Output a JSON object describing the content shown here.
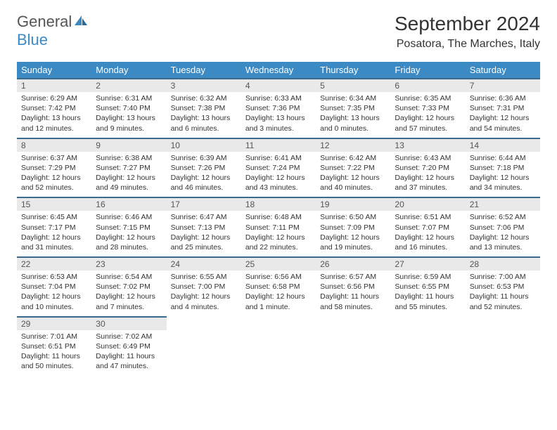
{
  "brand": {
    "part1": "General",
    "part2": "Blue"
  },
  "title": "September 2024",
  "location": "Posatora, The Marches, Italy",
  "colors": {
    "header_bg": "#3b8ac4",
    "header_text": "#ffffff",
    "row_border": "#3b6b8c",
    "daynum_bg": "#e9e9e9",
    "text": "#333333",
    "brand_gray": "#555555",
    "brand_blue": "#3b8ac4"
  },
  "weekdays": [
    "Sunday",
    "Monday",
    "Tuesday",
    "Wednesday",
    "Thursday",
    "Friday",
    "Saturday"
  ],
  "weeks": [
    [
      {
        "n": "1",
        "sr": "Sunrise: 6:29 AM",
        "ss": "Sunset: 7:42 PM",
        "dl": "Daylight: 13 hours and 12 minutes."
      },
      {
        "n": "2",
        "sr": "Sunrise: 6:31 AM",
        "ss": "Sunset: 7:40 PM",
        "dl": "Daylight: 13 hours and 9 minutes."
      },
      {
        "n": "3",
        "sr": "Sunrise: 6:32 AM",
        "ss": "Sunset: 7:38 PM",
        "dl": "Daylight: 13 hours and 6 minutes."
      },
      {
        "n": "4",
        "sr": "Sunrise: 6:33 AM",
        "ss": "Sunset: 7:36 PM",
        "dl": "Daylight: 13 hours and 3 minutes."
      },
      {
        "n": "5",
        "sr": "Sunrise: 6:34 AM",
        "ss": "Sunset: 7:35 PM",
        "dl": "Daylight: 13 hours and 0 minutes."
      },
      {
        "n": "6",
        "sr": "Sunrise: 6:35 AM",
        "ss": "Sunset: 7:33 PM",
        "dl": "Daylight: 12 hours and 57 minutes."
      },
      {
        "n": "7",
        "sr": "Sunrise: 6:36 AM",
        "ss": "Sunset: 7:31 PM",
        "dl": "Daylight: 12 hours and 54 minutes."
      }
    ],
    [
      {
        "n": "8",
        "sr": "Sunrise: 6:37 AM",
        "ss": "Sunset: 7:29 PM",
        "dl": "Daylight: 12 hours and 52 minutes."
      },
      {
        "n": "9",
        "sr": "Sunrise: 6:38 AM",
        "ss": "Sunset: 7:27 PM",
        "dl": "Daylight: 12 hours and 49 minutes."
      },
      {
        "n": "10",
        "sr": "Sunrise: 6:39 AM",
        "ss": "Sunset: 7:26 PM",
        "dl": "Daylight: 12 hours and 46 minutes."
      },
      {
        "n": "11",
        "sr": "Sunrise: 6:41 AM",
        "ss": "Sunset: 7:24 PM",
        "dl": "Daylight: 12 hours and 43 minutes."
      },
      {
        "n": "12",
        "sr": "Sunrise: 6:42 AM",
        "ss": "Sunset: 7:22 PM",
        "dl": "Daylight: 12 hours and 40 minutes."
      },
      {
        "n": "13",
        "sr": "Sunrise: 6:43 AM",
        "ss": "Sunset: 7:20 PM",
        "dl": "Daylight: 12 hours and 37 minutes."
      },
      {
        "n": "14",
        "sr": "Sunrise: 6:44 AM",
        "ss": "Sunset: 7:18 PM",
        "dl": "Daylight: 12 hours and 34 minutes."
      }
    ],
    [
      {
        "n": "15",
        "sr": "Sunrise: 6:45 AM",
        "ss": "Sunset: 7:17 PM",
        "dl": "Daylight: 12 hours and 31 minutes."
      },
      {
        "n": "16",
        "sr": "Sunrise: 6:46 AM",
        "ss": "Sunset: 7:15 PM",
        "dl": "Daylight: 12 hours and 28 minutes."
      },
      {
        "n": "17",
        "sr": "Sunrise: 6:47 AM",
        "ss": "Sunset: 7:13 PM",
        "dl": "Daylight: 12 hours and 25 minutes."
      },
      {
        "n": "18",
        "sr": "Sunrise: 6:48 AM",
        "ss": "Sunset: 7:11 PM",
        "dl": "Daylight: 12 hours and 22 minutes."
      },
      {
        "n": "19",
        "sr": "Sunrise: 6:50 AM",
        "ss": "Sunset: 7:09 PM",
        "dl": "Daylight: 12 hours and 19 minutes."
      },
      {
        "n": "20",
        "sr": "Sunrise: 6:51 AM",
        "ss": "Sunset: 7:07 PM",
        "dl": "Daylight: 12 hours and 16 minutes."
      },
      {
        "n": "21",
        "sr": "Sunrise: 6:52 AM",
        "ss": "Sunset: 7:06 PM",
        "dl": "Daylight: 12 hours and 13 minutes."
      }
    ],
    [
      {
        "n": "22",
        "sr": "Sunrise: 6:53 AM",
        "ss": "Sunset: 7:04 PM",
        "dl": "Daylight: 12 hours and 10 minutes."
      },
      {
        "n": "23",
        "sr": "Sunrise: 6:54 AM",
        "ss": "Sunset: 7:02 PM",
        "dl": "Daylight: 12 hours and 7 minutes."
      },
      {
        "n": "24",
        "sr": "Sunrise: 6:55 AM",
        "ss": "Sunset: 7:00 PM",
        "dl": "Daylight: 12 hours and 4 minutes."
      },
      {
        "n": "25",
        "sr": "Sunrise: 6:56 AM",
        "ss": "Sunset: 6:58 PM",
        "dl": "Daylight: 12 hours and 1 minute."
      },
      {
        "n": "26",
        "sr": "Sunrise: 6:57 AM",
        "ss": "Sunset: 6:56 PM",
        "dl": "Daylight: 11 hours and 58 minutes."
      },
      {
        "n": "27",
        "sr": "Sunrise: 6:59 AM",
        "ss": "Sunset: 6:55 PM",
        "dl": "Daylight: 11 hours and 55 minutes."
      },
      {
        "n": "28",
        "sr": "Sunrise: 7:00 AM",
        "ss": "Sunset: 6:53 PM",
        "dl": "Daylight: 11 hours and 52 minutes."
      }
    ],
    [
      {
        "n": "29",
        "sr": "Sunrise: 7:01 AM",
        "ss": "Sunset: 6:51 PM",
        "dl": "Daylight: 11 hours and 50 minutes."
      },
      {
        "n": "30",
        "sr": "Sunrise: 7:02 AM",
        "ss": "Sunset: 6:49 PM",
        "dl": "Daylight: 11 hours and 47 minutes."
      },
      null,
      null,
      null,
      null,
      null
    ]
  ]
}
